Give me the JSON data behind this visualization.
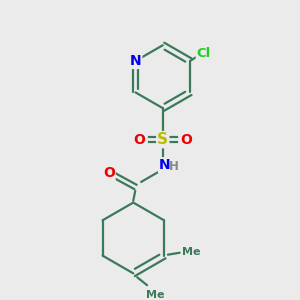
{
  "background_color": "#ebebeb",
  "bond_color": "#3a7a5a",
  "atom_colors": {
    "N": "#0000ee",
    "O": "#ee0000",
    "S": "#bbbb00",
    "Cl": "#22cc22",
    "C": "#3a7a5a",
    "H": "#888888"
  },
  "figsize": [
    3.0,
    3.0
  ],
  "dpi": 100
}
